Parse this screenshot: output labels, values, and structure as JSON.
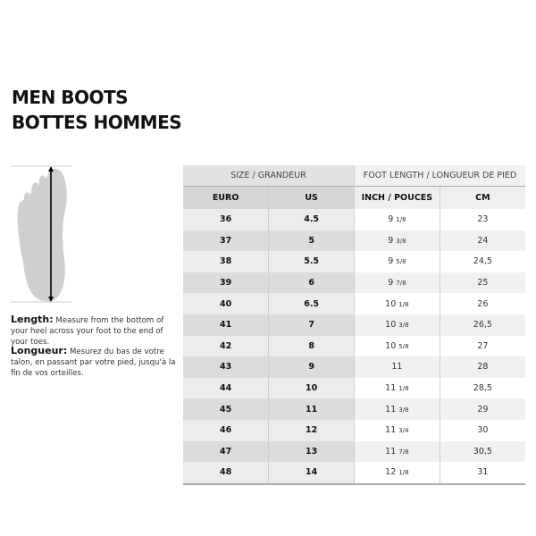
{
  "title_en": "MEN BOOTS",
  "title_fr": "BOTTES HOMMES",
  "length": {
    "label": "Length:",
    "text": "Measure from the bottom of your heel across your foot to the end of your toes."
  },
  "longueur": {
    "label": "Longueur:",
    "text": "Mesurez du bas de votre talon, en passant par votre pied, jusqu'à la fin de vos orteilles."
  },
  "table": {
    "group_headers": [
      "SIZE / GRANDEUR",
      "FOOT LENGTH / LONGUEUR DE PIED"
    ],
    "columns": [
      "EURO",
      "US",
      "INCH / POUCES",
      "CM"
    ],
    "rows": [
      {
        "euro": "36",
        "us": "4.5",
        "inch": "9",
        "frac": "1/8",
        "cm": "23"
      },
      {
        "euro": "37",
        "us": "5",
        "inch": "9",
        "frac": "3/8",
        "cm": "24"
      },
      {
        "euro": "38",
        "us": "5.5",
        "inch": "9",
        "frac": "5/8",
        "cm": "24,5"
      },
      {
        "euro": "39",
        "us": "6",
        "inch": "9",
        "frac": "7/8",
        "cm": "25"
      },
      {
        "euro": "40",
        "us": "6.5",
        "inch": "10",
        "frac": "1/8",
        "cm": "26"
      },
      {
        "euro": "41",
        "us": "7",
        "inch": "10",
        "frac": "3/8",
        "cm": "26,5"
      },
      {
        "euro": "42",
        "us": "8",
        "inch": "10",
        "frac": "5/8",
        "cm": "27"
      },
      {
        "euro": "43",
        "us": "9",
        "inch": "11",
        "frac": "",
        "cm": "28"
      },
      {
        "euro": "44",
        "us": "10",
        "inch": "11",
        "frac": "1/8",
        "cm": "28,5"
      },
      {
        "euro": "45",
        "us": "11",
        "inch": "11",
        "frac": "3/8",
        "cm": "29"
      },
      {
        "euro": "46",
        "us": "12",
        "inch": "11",
        "frac": "3/4",
        "cm": "30"
      },
      {
        "euro": "47",
        "us": "13",
        "inch": "11",
        "frac": "7/8",
        "cm": "30,5"
      },
      {
        "euro": "48",
        "us": "14",
        "inch": "12",
        "frac": "1/8",
        "cm": "31"
      }
    ]
  }
}
